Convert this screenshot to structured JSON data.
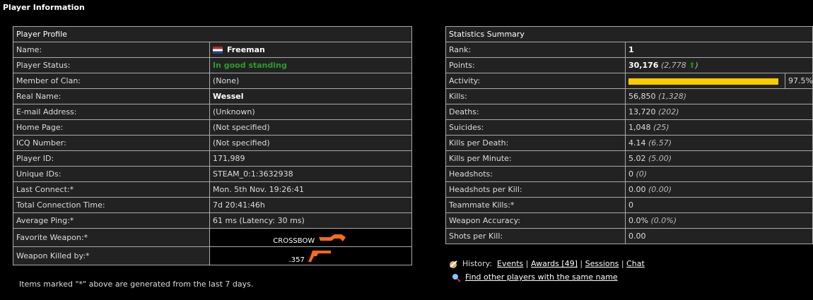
{
  "page_title": "Player Information",
  "profile": {
    "header": "Player Profile",
    "rows": [
      {
        "label": "Name:",
        "value": "Freeman"
      },
      {
        "label": "Player Status:",
        "value": "In good standing"
      },
      {
        "label": "Member of Clan:",
        "value": "(None)"
      },
      {
        "label": "Real Name:",
        "value": "Wessel"
      },
      {
        "label": "E-mail Address:",
        "value": "(Unknown)"
      },
      {
        "label": "Home Page:",
        "value": "(Not specified)"
      },
      {
        "label": "ICQ Number:",
        "value": "(Not specified)"
      },
      {
        "label": "Player ID:",
        "value": "171,989"
      },
      {
        "label": "Unique IDs:",
        "value": "STEAM_0:1:3632938"
      },
      {
        "label": "Last Connect:*",
        "value": "Mon. 5th Nov. 19:26:41"
      },
      {
        "label": "Total Connection Time:",
        "value": "7d 20:41:46h"
      },
      {
        "label": "Average Ping:*",
        "value": "61 ms (Latency: 30 ms)"
      },
      {
        "label": "Favorite Weapon:*",
        "value": "CROSSBOW"
      },
      {
        "label": "Weapon Killed by:*",
        "value": ".357"
      }
    ],
    "flag": "netherlands-flag",
    "accent": "#2a9d2a",
    "weapon_color": "#ff6a1a"
  },
  "note": "Items marked \"*\" above are generated from the last 7 days.",
  "stats": {
    "header": "Statistics Summary",
    "rank": {
      "label": "Rank:",
      "value": "1"
    },
    "points": {
      "label": "Points:",
      "value": "30,176",
      "change": "2,778"
    },
    "activity": {
      "label": "Activity:",
      "percent": 97.5,
      "text": "97.5%",
      "color": "#ffcc00"
    },
    "rows": [
      {
        "label": "Kills:",
        "value": "56,850",
        "sub": "(1,328)"
      },
      {
        "label": "Deaths:",
        "value": "13,720",
        "sub": "(202)"
      },
      {
        "label": "Suicides:",
        "value": "1,048",
        "sub": "(25)"
      },
      {
        "label": "Kills per Death:",
        "value": "4.14",
        "sub": "(6.57)"
      },
      {
        "label": "Kills per Minute:",
        "value": "5.02",
        "sub": "(5.00)"
      },
      {
        "label": "Headshots:",
        "value": "0",
        "sub": "(0)"
      },
      {
        "label": "Headshots per Kill:",
        "value": "0.00",
        "sub": "(0.00)"
      },
      {
        "label": "Teammate Kills:*",
        "value": "0",
        "sub": ""
      },
      {
        "label": "Weapon Accuracy:",
        "value": "0.0%",
        "sub": "(0.0%)"
      },
      {
        "label": "Shots per Kill:",
        "value": "0.00",
        "sub": ""
      }
    ]
  },
  "history": {
    "label": "History:",
    "links": [
      "Events",
      "Awards [49]",
      "Sessions",
      "Chat"
    ],
    "find": "Find other players with the same name"
  }
}
